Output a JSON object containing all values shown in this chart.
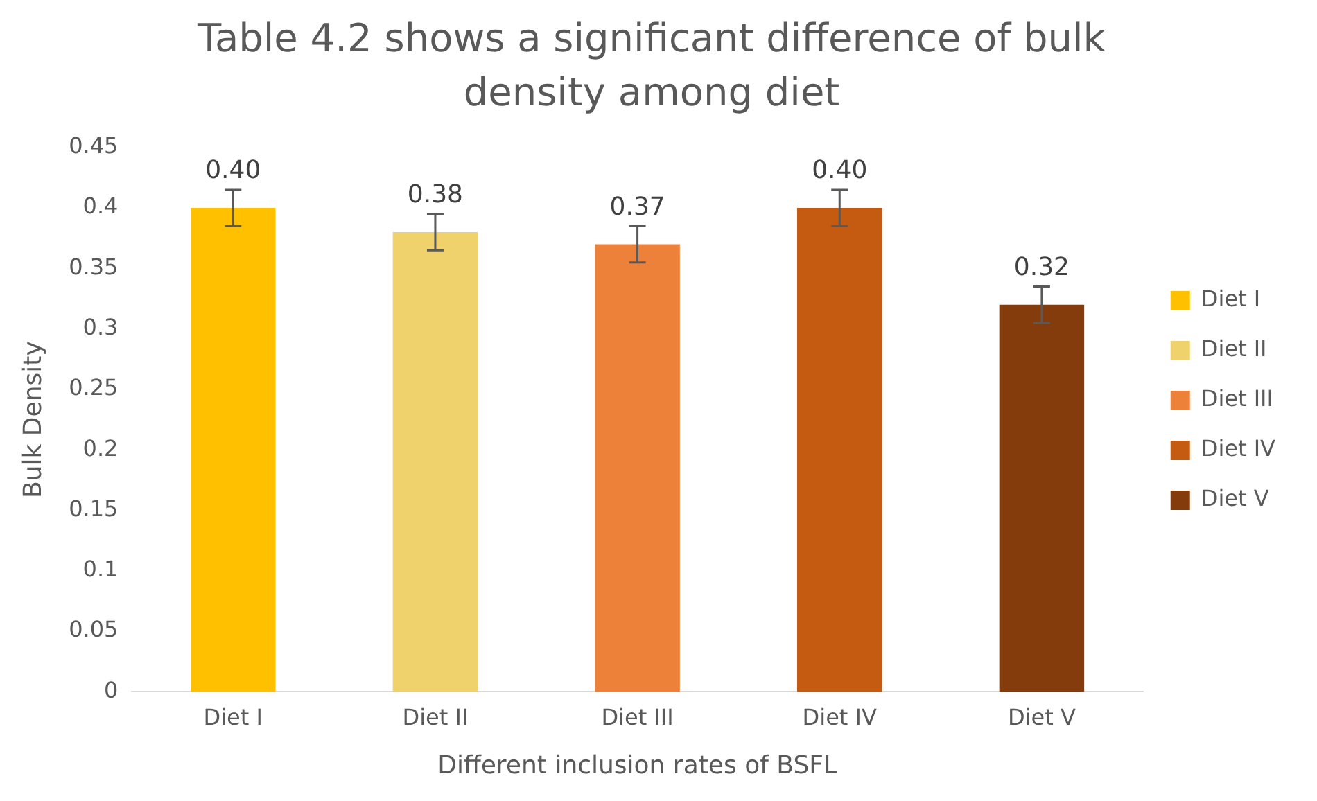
{
  "chart_data": {
    "type": "bar",
    "title": "Table 4.2 shows a significant difference of bulk density among diet",
    "xlabel": "Different inclusion rates of BSFL",
    "ylabel": "Bulk Density",
    "categories": [
      "Diet I",
      "Diet II",
      "Diet III",
      "Diet IV",
      "Diet V"
    ],
    "series": [
      {
        "name": "Diet I",
        "color": "#ffc000",
        "values": [
          0.4,
          null,
          null,
          null,
          null
        ],
        "errors": [
          0.015,
          null,
          null,
          null,
          null
        ],
        "value_labels": [
          "0.40",
          null,
          null,
          null,
          null
        ]
      },
      {
        "name": "Diet II",
        "color": "#f0d26c",
        "values": [
          null,
          0.38,
          null,
          null,
          null
        ],
        "errors": [
          null,
          0.015,
          null,
          null,
          null
        ],
        "value_labels": [
          null,
          "0.38",
          null,
          null,
          null
        ]
      },
      {
        "name": "Diet III",
        "color": "#ed8139",
        "values": [
          null,
          null,
          0.37,
          null,
          null
        ],
        "errors": [
          null,
          null,
          0.015,
          null,
          null
        ],
        "value_labels": [
          null,
          null,
          "0.37",
          null,
          null
        ]
      },
      {
        "name": "Diet IV",
        "color": "#c55a11",
        "values": [
          null,
          null,
          null,
          0.4,
          null
        ],
        "errors": [
          null,
          null,
          null,
          0.015,
          null
        ],
        "value_labels": [
          null,
          null,
          null,
          "0.40",
          null
        ]
      },
      {
        "name": "Diet V",
        "color": "#843c0c",
        "values": [
          null,
          null,
          null,
          null,
          0.32
        ],
        "errors": [
          null,
          null,
          null,
          null,
          0.015
        ],
        "value_labels": [
          null,
          null,
          null,
          null,
          "0.32"
        ]
      }
    ],
    "ylim": [
      0,
      0.45
    ],
    "yticks": [
      0,
      0.05,
      0.1,
      0.15,
      0.2,
      0.25,
      0.3,
      0.35,
      0.4,
      0.45
    ],
    "grid": false,
    "legend": "right"
  }
}
